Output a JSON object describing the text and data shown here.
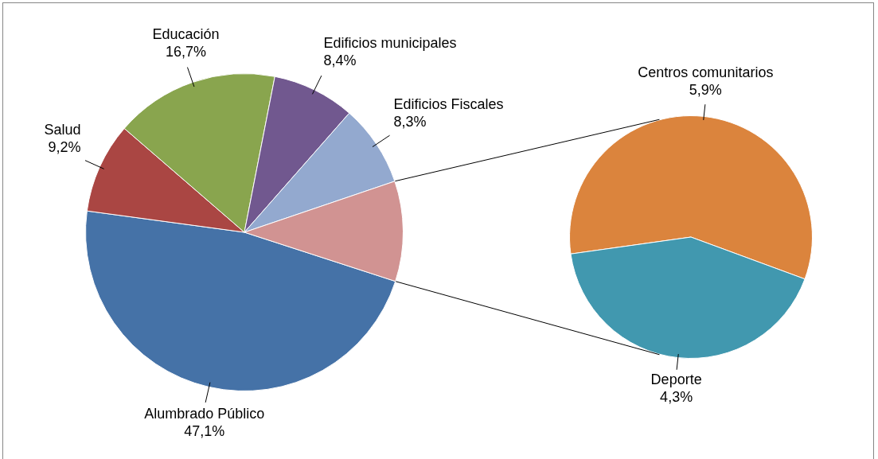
{
  "chart_data": [
    {
      "type": "pie",
      "categories": [
        "Alumbrado Público",
        "Salud",
        "Educación",
        "Edificios municipales",
        "Edificios Fiscales",
        null
      ],
      "values": [
        47.1,
        9.2,
        16.7,
        8.4,
        8.3,
        10.2
      ],
      "colors": [
        "#4572a7",
        "#aa4643",
        "#89a54e",
        "#71588f",
        "#93a9cf",
        "#d19392"
      ],
      "value_labels": [
        "47,1%",
        "9,2%",
        "16,7%",
        "8,4%",
        "8,3%",
        null
      ]
    },
    {
      "type": "pie",
      "categories": [
        "Centros comunitarios",
        "Deporte"
      ],
      "values": [
        5.9,
        4.3
      ],
      "colors": [
        "#db843d",
        "#4198af"
      ],
      "value_labels": [
        "5,9%",
        "4,3%"
      ]
    }
  ]
}
